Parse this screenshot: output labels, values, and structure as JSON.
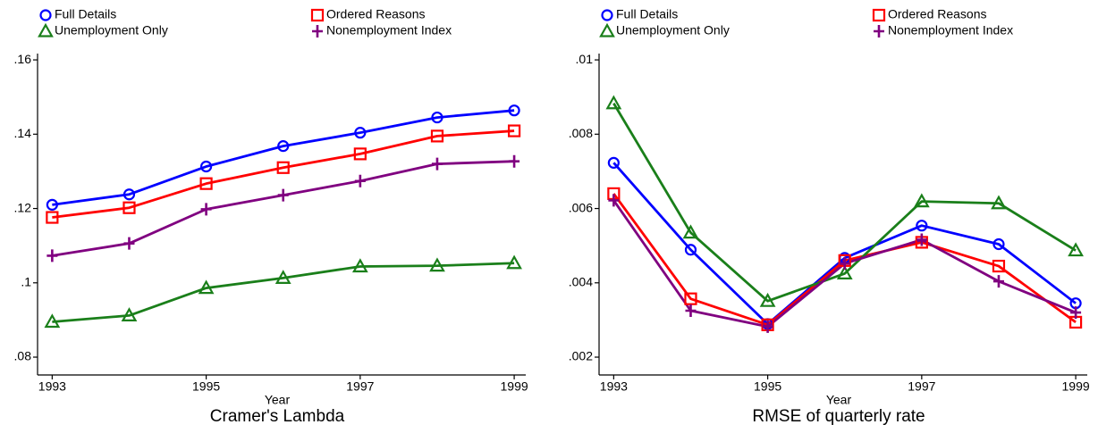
{
  "chart_data": [
    {
      "type": "line",
      "title": "Cramer's Lambda",
      "xlabel": "Year",
      "legend": "top",
      "x": [
        1993,
        1994,
        1995,
        1996,
        1997,
        1998,
        1999
      ],
      "xlim": [
        1992.81,
        1999.15
      ],
      "xticks": [
        1993,
        1995,
        1997,
        1999
      ],
      "ylim": [
        0.0752,
        0.1617
      ],
      "yticks": [
        {
          "value": 0.08,
          "label": ".08"
        },
        {
          "value": 0.1,
          "label": ".1"
        },
        {
          "value": 0.12,
          "label": ".12"
        },
        {
          "value": 0.14,
          "label": ".14"
        },
        {
          "value": 0.16,
          "label": ".16"
        }
      ],
      "series": [
        {
          "name": "Full Details",
          "color": "#0000ff",
          "marker": "circle",
          "values": [
            0.121,
            0.1238,
            0.1313,
            0.1368,
            0.1404,
            0.1445,
            0.1464
          ]
        },
        {
          "name": "Ordered Reasons",
          "color": "#ff0000",
          "marker": "square",
          "values": [
            0.1176,
            0.1202,
            0.1267,
            0.131,
            0.1347,
            0.1395,
            0.1409
          ]
        },
        {
          "name": "Unemployment Only",
          "color": "#1a7f1a",
          "marker": "triangle",
          "values": [
            0.0895,
            0.0912,
            0.0986,
            0.1013,
            0.1044,
            0.1046,
            0.1053
          ]
        },
        {
          "name": "Nonemployment Index",
          "color": "#800080",
          "marker": "plus",
          "values": [
            0.1073,
            0.1106,
            0.1198,
            0.1236,
            0.1274,
            0.132,
            0.1327
          ]
        }
      ]
    },
    {
      "type": "line",
      "title": "RMSE of quarterly rate",
      "xlabel": "Year",
      "legend": "top",
      "x": [
        1993,
        1994,
        1995,
        1996,
        1997,
        1998,
        1999
      ],
      "xlim": [
        1992.81,
        1999.15
      ],
      "xticks": [
        1993,
        1995,
        1997,
        1999
      ],
      "ylim": [
        0.00152,
        0.01017
      ],
      "yticks": [
        {
          "value": 0.002,
          "label": ".002"
        },
        {
          "value": 0.004,
          "label": ".004"
        },
        {
          "value": 0.006,
          "label": ".006"
        },
        {
          "value": 0.008,
          "label": ".008"
        },
        {
          "value": 0.01,
          "label": ".01"
        }
      ],
      "series": [
        {
          "name": "Full Details",
          "color": "#0000ff",
          "marker": "circle",
          "values": [
            0.00723,
            0.00489,
            0.00289,
            0.00467,
            0.00554,
            0.00504,
            0.00345
          ]
        },
        {
          "name": "Ordered Reasons",
          "color": "#ff0000",
          "marker": "square",
          "values": [
            0.0064,
            0.00357,
            0.00287,
            0.0046,
            0.00509,
            0.00445,
            0.00294
          ]
        },
        {
          "name": "Unemployment Only",
          "color": "#1a7f1a",
          "marker": "triangle",
          "values": [
            0.00883,
            0.00535,
            0.00351,
            0.00425,
            0.00619,
            0.00614,
            0.00487
          ]
        },
        {
          "name": "Nonemployment Index",
          "color": "#800080",
          "marker": "plus",
          "values": [
            0.00622,
            0.00325,
            0.00282,
            0.00452,
            0.00516,
            0.00404,
            0.0032
          ]
        }
      ]
    }
  ]
}
